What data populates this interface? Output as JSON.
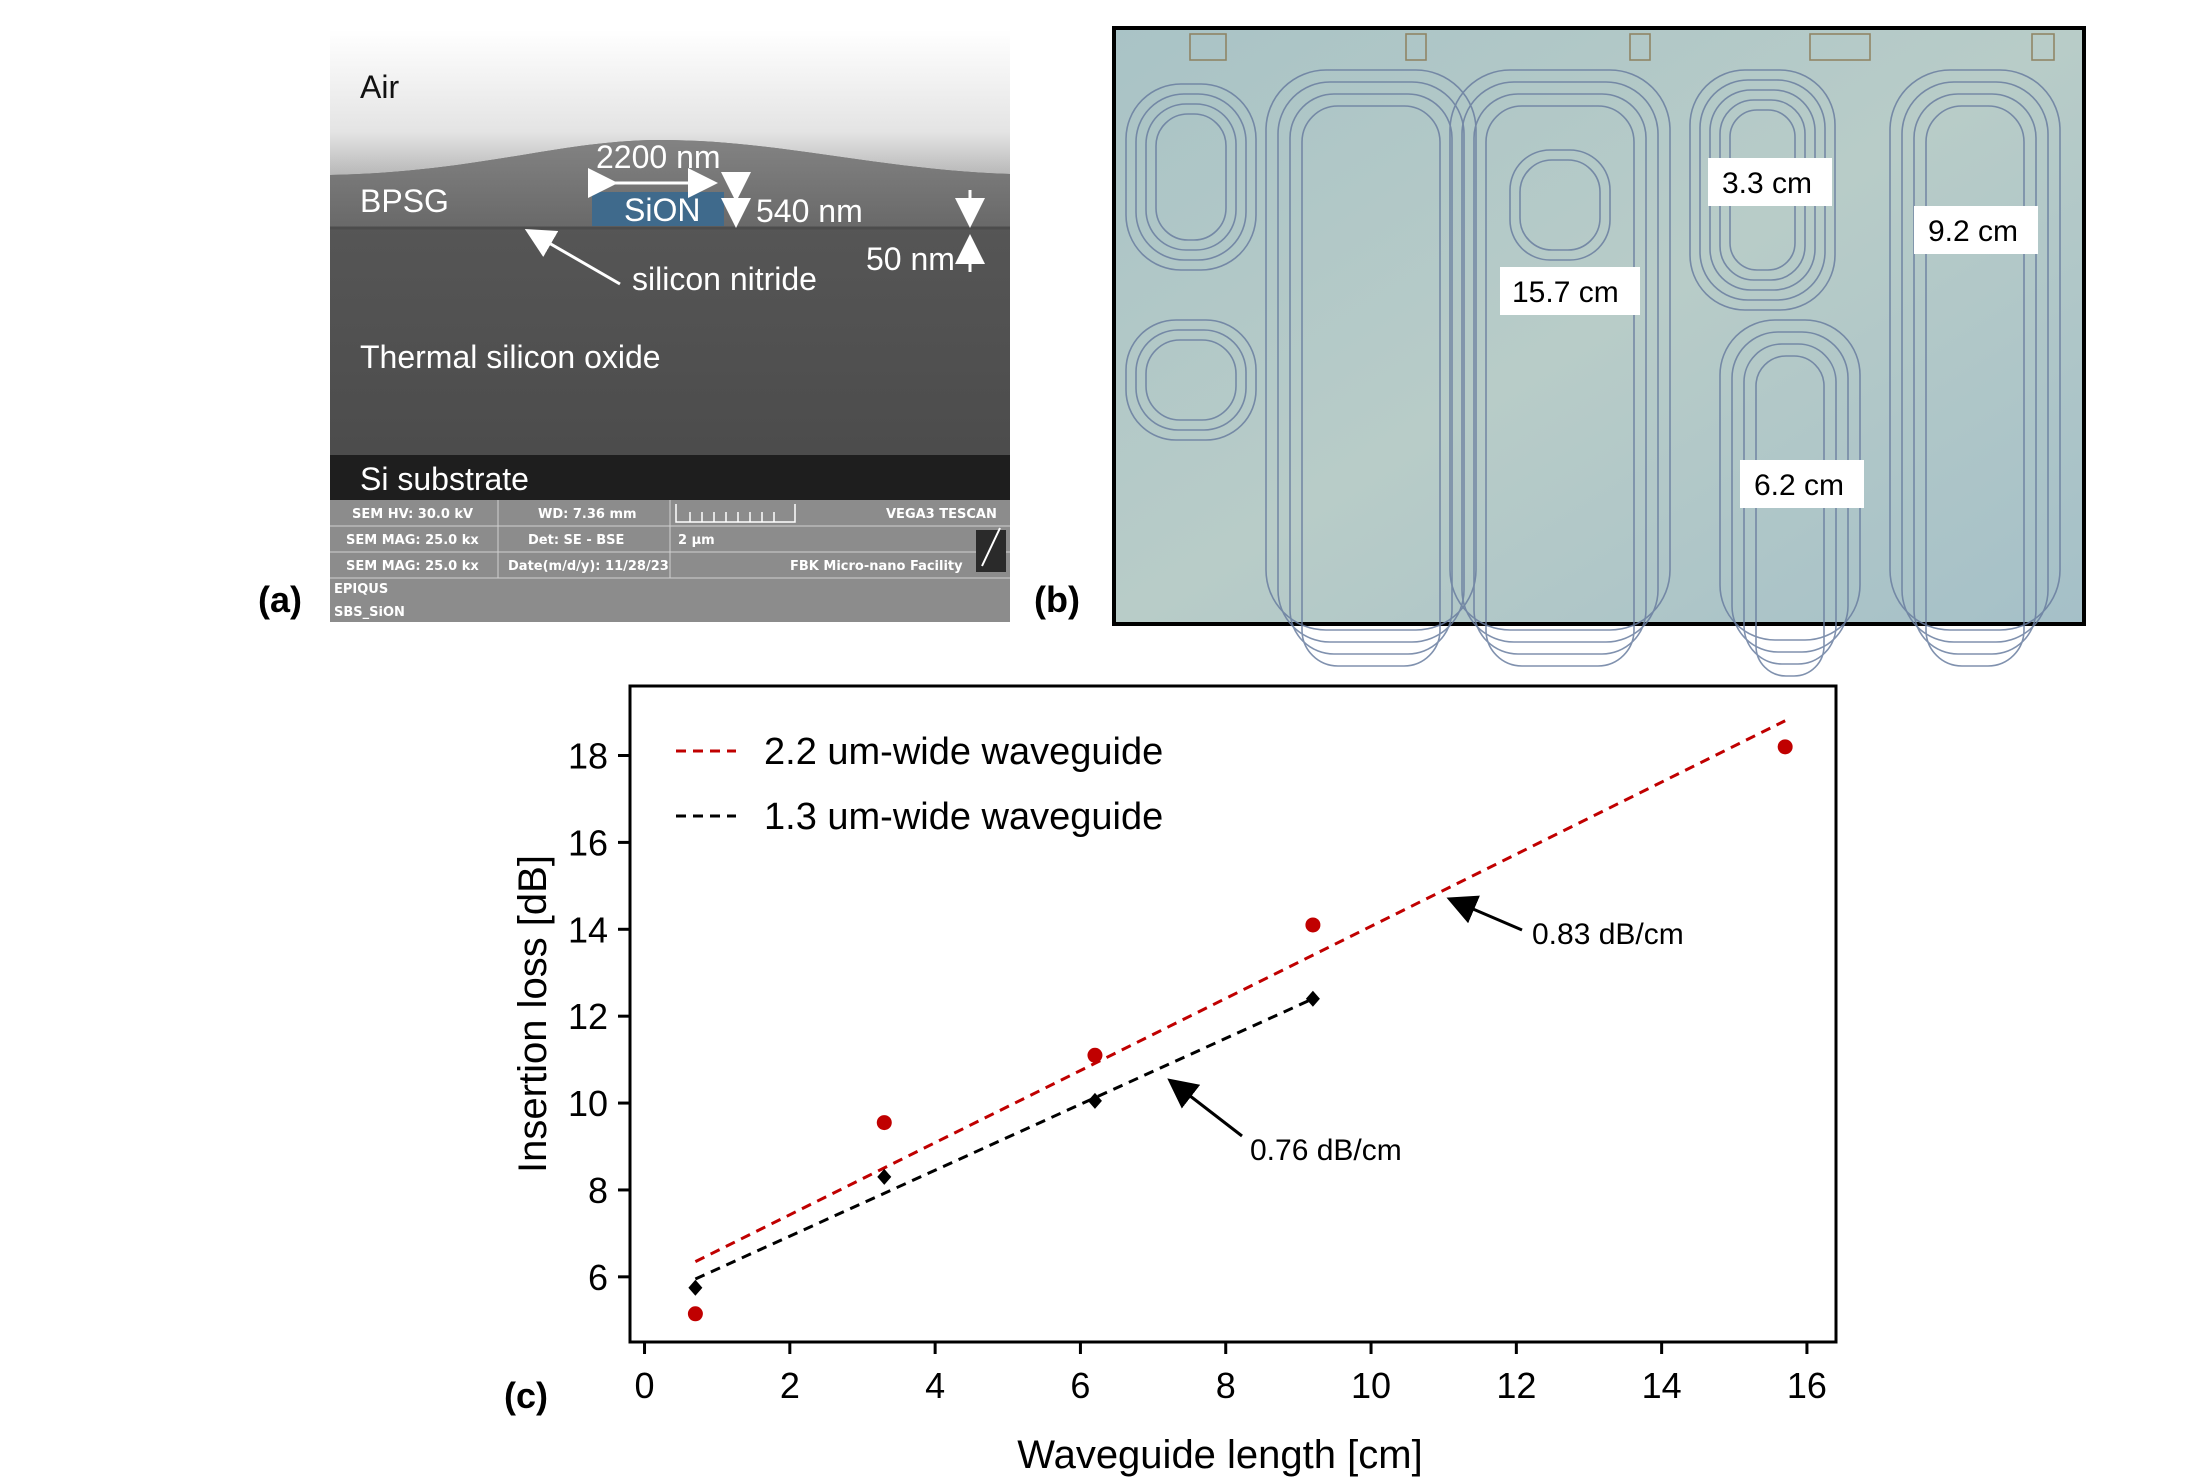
{
  "panels": {
    "a": {
      "label": "(a)",
      "layers": {
        "air": "Air",
        "bpsg": "BPSG",
        "thermal": "Thermal silicon oxide",
        "substrate": "Si substrate"
      },
      "core": "SiON",
      "width_annotation": "2200 nm",
      "height_annotation": "540 nm",
      "gap_annotation": "50 nm",
      "nitride_annotation": "silicon nitride",
      "sem_bar": {
        "hv": "SEM HV: 30.0 kV",
        "wd": "WD: 7.36 mm",
        "brand": "VEGA3 TESCAN",
        "mag1": "SEM MAG: 25.0 kx",
        "det": "Det: SE - BSE",
        "scale": "2 µm",
        "mag2": "SEM MAG: 25.0 kx",
        "date": "Date(m/d/y): 11/28/23",
        "facility": "FBK Micro-nano Facility",
        "project": "EPIQUS",
        "sample": "SBS_SiON"
      }
    },
    "b": {
      "label": "(b)",
      "lengths": [
        "3.3 cm",
        "9.2 cm",
        "15.7 cm",
        "6.2 cm"
      ]
    },
    "c": {
      "label": "(c)"
    }
  },
  "chart_data": {
    "type": "scatter",
    "xlabel": "Waveguide length [cm]",
    "ylabel": "Insertion loss [dB]",
    "xlim": [
      -0.2,
      16.4
    ],
    "ylim": [
      4.5,
      19.6
    ],
    "xticks": [
      0,
      2,
      4,
      6,
      8,
      10,
      12,
      14,
      16
    ],
    "yticks": [
      6,
      8,
      10,
      12,
      14,
      16,
      18
    ],
    "legend_position": "top-left",
    "series": [
      {
        "name": "2.2 um-wide waveguide",
        "color": "#c00000",
        "marker": "circle",
        "x": [
          0.7,
          3.3,
          6.2,
          9.2,
          15.7
        ],
        "y": [
          5.15,
          9.55,
          11.1,
          14.1,
          18.2
        ],
        "fit": {
          "x": [
            0.7,
            15.7
          ],
          "y": [
            6.35,
            18.8
          ]
        }
      },
      {
        "name": "1.3 um-wide waveguide",
        "color": "#000000",
        "marker": "diamond",
        "x": [
          0.7,
          3.3,
          6.2,
          9.2
        ],
        "y": [
          5.75,
          8.3,
          10.05,
          12.4
        ],
        "fit": {
          "x": [
            0.7,
            9.2
          ],
          "y": [
            5.95,
            12.4
          ]
        }
      }
    ],
    "annotations": [
      {
        "text": "0.83 dB/cm",
        "target_x": 10.9,
        "target_y": 14.7
      },
      {
        "text": "0.76 dB/cm",
        "target_x": 7.2,
        "target_y": 10.6
      }
    ]
  }
}
